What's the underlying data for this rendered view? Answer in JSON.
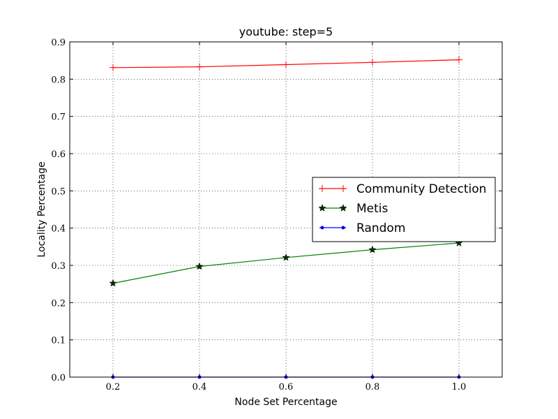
{
  "chart_data": {
    "type": "line",
    "title": "youtube: step=5",
    "xlabel": "Node Set Percentage",
    "ylabel": "Locality Percentage",
    "xlim": [
      0.1,
      1.1
    ],
    "ylim": [
      0.0,
      0.9
    ],
    "xticks": [
      "0.2",
      "0.4",
      "0.6",
      "0.8",
      "1.0"
    ],
    "yticks": [
      "0.0",
      "0.1",
      "0.2",
      "0.3",
      "0.4",
      "0.5",
      "0.6",
      "0.7",
      "0.8",
      "0.9"
    ],
    "grid": true,
    "legend_position": "center-right",
    "x": [
      0.2,
      0.4,
      0.6,
      0.8,
      1.0
    ],
    "series": [
      {
        "name": "Community Detection",
        "values": [
          0.831,
          0.833,
          0.839,
          0.845,
          0.852
        ],
        "color": "#ff0000",
        "marker": "plus"
      },
      {
        "name": "Metis",
        "values": [
          0.252,
          0.297,
          0.321,
          0.342,
          0.36
        ],
        "color": "#007f00",
        "marker": "star"
      },
      {
        "name": "Random",
        "values": [
          0.0,
          0.0,
          0.0,
          0.0,
          0.0
        ],
        "color": "#0000ff",
        "marker": "dot"
      }
    ]
  }
}
